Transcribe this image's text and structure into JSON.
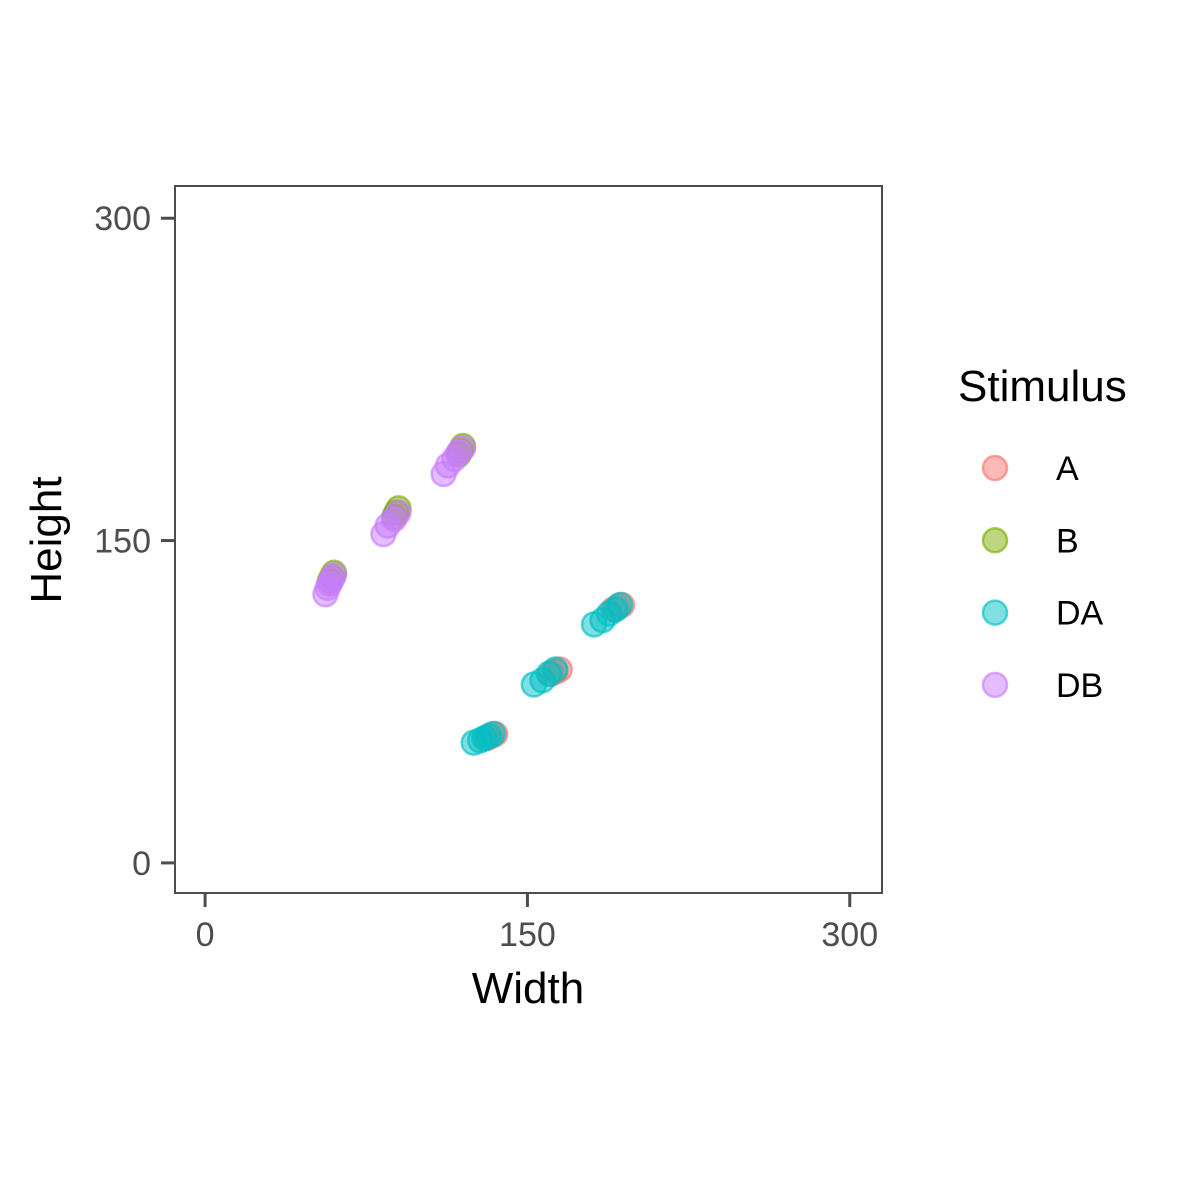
{
  "chart_data": {
    "type": "scatter",
    "xlabel": "Width",
    "ylabel": "Height",
    "xlim": [
      -14,
      315
    ],
    "ylim": [
      -14,
      315
    ],
    "x_ticks": [
      "0",
      "150",
      "300"
    ],
    "y_ticks": [
      "0",
      "150",
      "300"
    ],
    "x_tick_values": [
      0,
      150,
      300
    ],
    "y_tick_values": [
      0,
      150,
      300
    ],
    "grid": false,
    "legend": {
      "title": "Stimulus",
      "placement": "right"
    },
    "series": [
      {
        "name": "A",
        "color": "#F8766D",
        "points": [
          [
            135,
            60
          ],
          [
            133,
            59
          ],
          [
            131,
            58
          ],
          [
            165,
            90
          ],
          [
            163,
            89
          ],
          [
            161,
            88
          ],
          [
            194,
            120
          ],
          [
            192,
            119
          ],
          [
            190,
            118
          ]
        ]
      },
      {
        "name": "B",
        "color": "#7CAE00",
        "points": [
          [
            60,
            135
          ],
          [
            59,
            133
          ],
          [
            58,
            131
          ],
          [
            90,
            165
          ],
          [
            89,
            163
          ],
          [
            88,
            161
          ],
          [
            120,
            194
          ],
          [
            119,
            192
          ],
          [
            118,
            190
          ]
        ]
      },
      {
        "name": "DA",
        "color": "#00BFC4",
        "points": [
          [
            125,
            56
          ],
          [
            128,
            57
          ],
          [
            130,
            58
          ],
          [
            132,
            59
          ],
          [
            134,
            60
          ],
          [
            153,
            83
          ],
          [
            157,
            85
          ],
          [
            160,
            88
          ],
          [
            163,
            90
          ],
          [
            181,
            111
          ],
          [
            185,
            113
          ],
          [
            188,
            116
          ],
          [
            191,
            118
          ],
          [
            193,
            120
          ]
        ]
      },
      {
        "name": "DB",
        "color": "#C77CFF",
        "points": [
          [
            56,
            125
          ],
          [
            57,
            128
          ],
          [
            58,
            130
          ],
          [
            59,
            132
          ],
          [
            60,
            134
          ],
          [
            83,
            153
          ],
          [
            85,
            157
          ],
          [
            88,
            160
          ],
          [
            90,
            163
          ],
          [
            111,
            181
          ],
          [
            113,
            185
          ],
          [
            116,
            188
          ],
          [
            118,
            191
          ],
          [
            120,
            193
          ]
        ]
      }
    ]
  }
}
